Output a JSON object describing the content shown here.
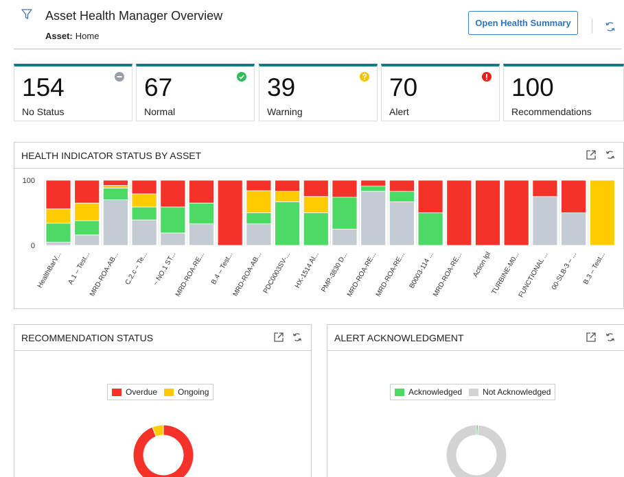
{
  "header": {
    "title": "Asset Health Manager Overview",
    "asset_key": "Asset:",
    "asset_value": "Home",
    "open_button": "Open Health Summary"
  },
  "cards": [
    {
      "value": "154",
      "label": "No Status",
      "status": "none",
      "color": "#9aa0a6"
    },
    {
      "value": "67",
      "label": "Normal",
      "status": "normal",
      "color": "#2ebd59"
    },
    {
      "value": "39",
      "label": "Warning",
      "status": "warning",
      "color": "#f5c400"
    },
    {
      "value": "70",
      "label": "Alert",
      "status": "alert",
      "color": "#e8201c"
    },
    {
      "value": "100",
      "label": "Recommendations",
      "status": "",
      "color": ""
    }
  ],
  "colors": {
    "accent": "#137b88",
    "red": "#f53229",
    "yellow": "#ffcc00",
    "green": "#4cd964",
    "gray": "#c4cbd2",
    "donut_gray": "#d3d3d3",
    "button_blue": "#2f74c0"
  },
  "health_panel": {
    "title": "HEALTH INDICATOR STATUS BY ASSET"
  },
  "recommendation_panel": {
    "title": "RECOMMENDATION STATUS",
    "legend": [
      "Overdue",
      "Ongoing"
    ]
  },
  "alert_panel": {
    "title": "ALERT ACKNOWLEDGMENT",
    "legend": [
      "Acknowledged",
      "Not Acknowledged"
    ]
  },
  "chart_data": [
    {
      "type": "bar",
      "stacked": true,
      "title": "HEALTH INDICATOR STATUS BY ASSET",
      "ylim": [
        0,
        100
      ],
      "yticks": [
        0,
        100
      ],
      "categories": [
        "HealthBarV...",
        "A.1 – Test...",
        "MRD-ROA-AB...",
        "C.2.c – Te...",
        "~ NO.1 ST...",
        "MRD-ROA-RE...",
        "B.4 – Test...",
        "MRD-ROA-AB...",
        "PDC0003SV-...",
        "HX-1514 Al...",
        "PMP-3830 D...",
        "MRD-ROA-RE...",
        "MRD-ROA-RE...",
        "B0003-114 ...",
        "MRD-ROA-RE...",
        "Action lpl",
        "TURBINE-M0...",
        "FUNCTIONAL ...",
        "00-SLB-3 – ...",
        "B.3 – Test..."
      ],
      "series": [
        {
          "key": "gray",
          "values": [
            5,
            16,
            70,
            39,
            19,
            33,
            0,
            33,
            0,
            0,
            25,
            83,
            67,
            0,
            0,
            0,
            0,
            75,
            50,
            0
          ]
        },
        {
          "key": "green",
          "values": [
            29,
            22,
            18,
            20,
            40,
            32,
            0,
            17,
            67,
            50,
            49,
            8,
            16,
            50,
            0,
            0,
            0,
            0,
            0,
            0
          ]
        },
        {
          "key": "yellow",
          "values": [
            22,
            27,
            4,
            20,
            0,
            0,
            0,
            34,
            16,
            25,
            0,
            0,
            0,
            0,
            0,
            0,
            0,
            0,
            0,
            100
          ]
        },
        {
          "key": "red",
          "values": [
            44,
            35,
            8,
            21,
            41,
            35,
            100,
            16,
            17,
            25,
            26,
            9,
            17,
            50,
            100,
            100,
            100,
            25,
            50,
            0
          ]
        }
      ],
      "grid": false,
      "legend": "none"
    },
    {
      "type": "pie",
      "donut": true,
      "title": "RECOMMENDATION STATUS",
      "labels": [
        "Overdue",
        "Ongoing"
      ],
      "values": [
        94,
        6
      ],
      "legend": "top-center"
    },
    {
      "type": "pie",
      "donut": true,
      "title": "ALERT ACKNOWLEDGMENT",
      "labels": [
        "Acknowledged",
        "Not Acknowledged"
      ],
      "values": [
        1,
        99
      ],
      "legend": "top-center"
    }
  ]
}
